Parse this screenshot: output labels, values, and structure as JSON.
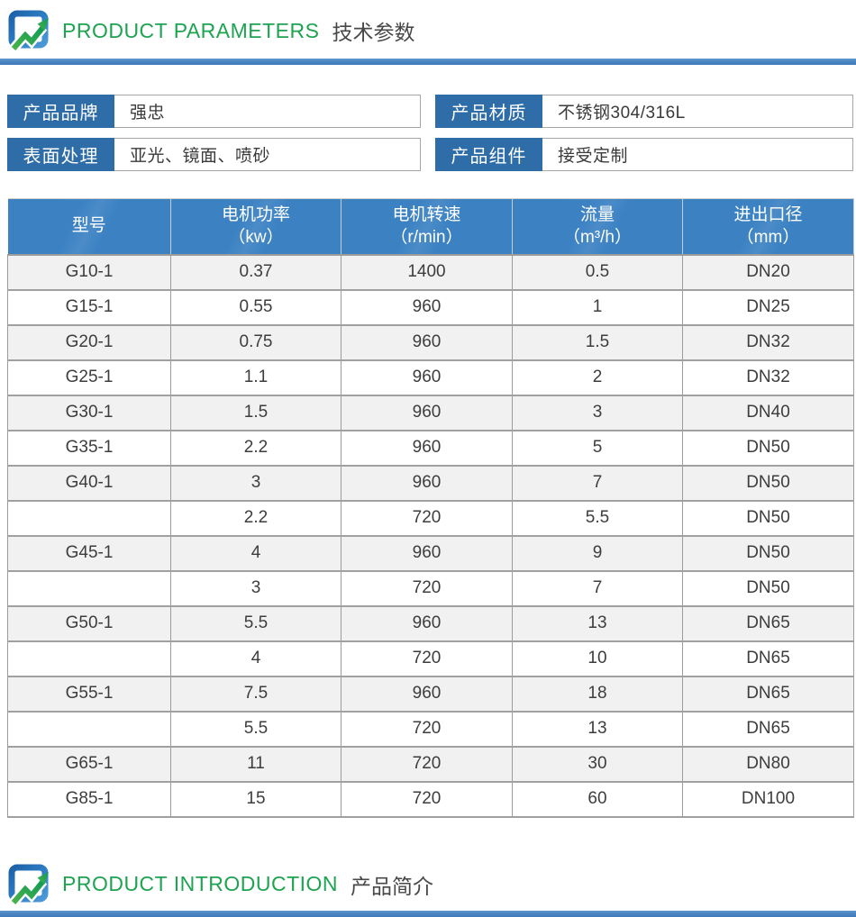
{
  "header": {
    "title_en": "PRODUCT PARAMETERS",
    "title_cn": "技术参数"
  },
  "footer": {
    "title_en": "PRODUCT INTRODUCTION",
    "title_cn": "产品简介"
  },
  "info_boxes": [
    {
      "label": "产品品牌",
      "value": "强忠"
    },
    {
      "label": "产品材质",
      "value": "不锈钢304/316L"
    },
    {
      "label": "表面处理",
      "value": "亚光、镜面、喷砂"
    },
    {
      "label": "产品组件",
      "value": "接受定制"
    }
  ],
  "table": {
    "columns": [
      {
        "name": "型号",
        "unit": ""
      },
      {
        "name": "电机功率",
        "unit": "（kw）"
      },
      {
        "name": "电机转速",
        "unit": "（r/min）"
      },
      {
        "name": "流量",
        "unit": "（m³/h）"
      },
      {
        "name": "进出口径",
        "unit": "（mm）"
      }
    ],
    "rows": [
      [
        "G10-1",
        "0.37",
        "1400",
        "0.5",
        "DN20"
      ],
      [
        "G15-1",
        "0.55",
        "960",
        "1",
        "DN25"
      ],
      [
        "G20-1",
        "0.75",
        "960",
        "1.5",
        "DN32"
      ],
      [
        "G25-1",
        "1.1",
        "960",
        "2",
        "DN32"
      ],
      [
        "G30-1",
        "1.5",
        "960",
        "3",
        "DN40"
      ],
      [
        "G35-1",
        "2.2",
        "960",
        "5",
        "DN50"
      ],
      [
        "G40-1",
        "3",
        "960",
        "7",
        "DN50"
      ],
      [
        "",
        "2.2",
        "720",
        "5.5",
        "DN50"
      ],
      [
        "G45-1",
        "4",
        "960",
        "9",
        "DN50"
      ],
      [
        "",
        "3",
        "720",
        "7",
        "DN50"
      ],
      [
        "G50-1",
        "5.5",
        "960",
        "13",
        "DN65"
      ],
      [
        "",
        "4",
        "720",
        "10",
        "DN65"
      ],
      [
        "G55-1",
        "7.5",
        "960",
        "18",
        "DN65"
      ],
      [
        "",
        "5.5",
        "720",
        "13",
        "DN65"
      ],
      [
        "G65-1",
        "11",
        "720",
        "30",
        "DN80"
      ],
      [
        "G85-1",
        "15",
        "720",
        "60",
        "DN100"
      ]
    ]
  },
  "colors": {
    "accent_green": "#1ea351",
    "header_blue": "#3c82c3",
    "label_blue": "#2e6da8",
    "divider_blue": "#4a86c3"
  }
}
